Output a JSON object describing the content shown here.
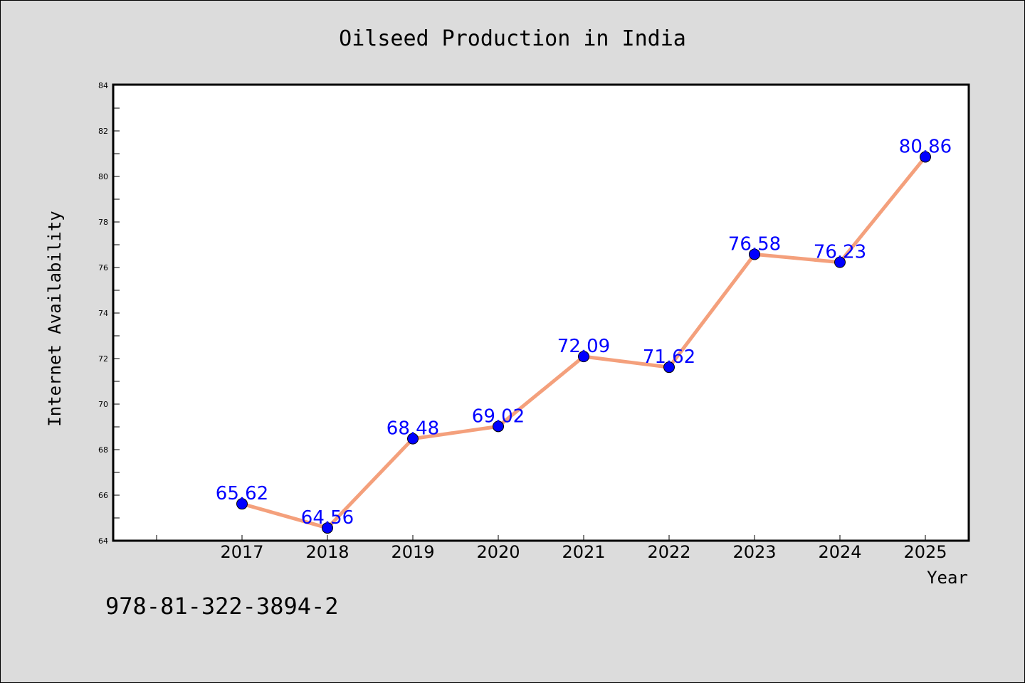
{
  "chart_data": {
    "type": "line",
    "title": "Oilseed Production in India",
    "xlabel": "Year",
    "ylabel": "Internet Availability",
    "categories": [
      "2017",
      "2018",
      "2019",
      "2020",
      "2021",
      "2022",
      "2023",
      "2024",
      "2025"
    ],
    "values": [
      65.62,
      64.56,
      68.48,
      69.02,
      72.09,
      71.62,
      76.58,
      76.23,
      80.86
    ],
    "data_labels": [
      "65.62",
      "64.56",
      "68.48",
      "69.02",
      "72.09",
      "71.62",
      "76.58",
      "76.23",
      "80.86"
    ],
    "ylim": [
      64,
      84
    ],
    "yticks": [
      "64",
      "66",
      "68",
      "70",
      "72",
      "74",
      "76",
      "78",
      "80",
      "82",
      "84"
    ],
    "grid": false,
    "legend": "none",
    "line_color": "#f4a07c",
    "marker_color": "#0000ff",
    "label_color": "#0000ff"
  },
  "footer": {
    "isbn": "978-81-322-3894-2"
  }
}
